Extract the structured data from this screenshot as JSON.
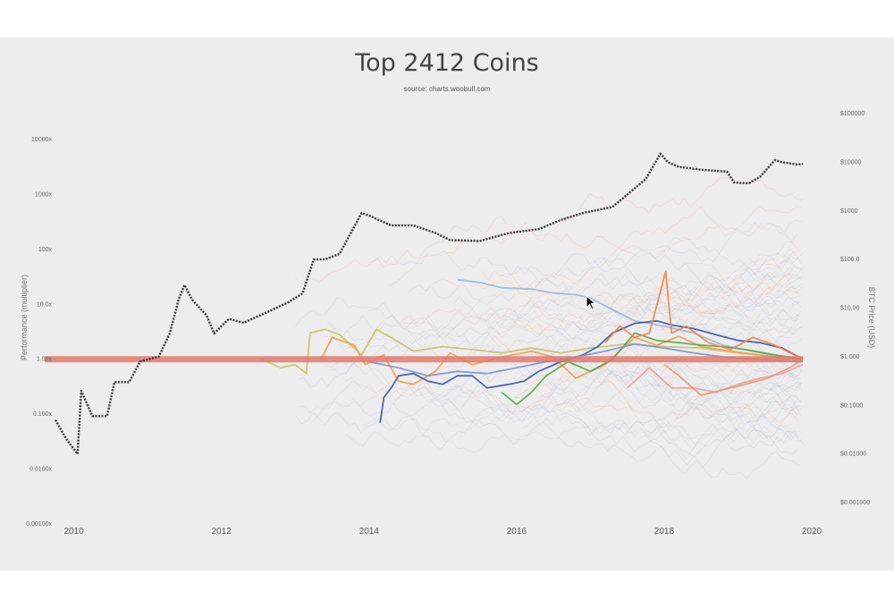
{
  "colors": {
    "background": "#eeedee",
    "btc": "#333333",
    "baseline": "#e07a6e",
    "faint": "#8a9bbd",
    "orange_cloud": "#f0844c"
  },
  "chart_data": {
    "type": "line",
    "title": "Top 2412 Coins",
    "subtitle": "source: charts.woobull.com",
    "ylabel": "Performance (multiplier)",
    "y2label": "BTC Price (USD)",
    "xlabel": "",
    "xlim": [
      2009.75,
      2020.0
    ],
    "ylim": [
      0.001,
      10000
    ],
    "y2lim": [
      0.001,
      100000
    ],
    "yscale": "log",
    "x_ticks": [
      "2010",
      "2012",
      "2014",
      "2016",
      "2018",
      "2020"
    ],
    "y_ticks": [
      "10000x",
      "1000x",
      "100x",
      "10.0x",
      "1.00x",
      "0.100x",
      "0.0100x",
      "0.00100x"
    ],
    "y2_ticks": [
      "$100000",
      "$10000",
      "$1000",
      "$100.0",
      "$10.00",
      "$1.000",
      "$0.1000",
      "$0.01000",
      "$0.001000"
    ],
    "baseline_value": 1.0,
    "legend": "none",
    "grid": false,
    "series": [
      {
        "color": "#333333",
        "axis": "right",
        "points": [
          [
            2009.75,
            0.05
          ],
          [
            2009.9,
            0.02
          ],
          [
            2010.05,
            0.01
          ],
          [
            2010.1,
            0.2
          ],
          [
            2010.25,
            0.06
          ],
          [
            2010.45,
            0.06
          ],
          [
            2010.55,
            0.3
          ],
          [
            2010.75,
            0.3
          ],
          [
            2010.9,
            0.8
          ],
          [
            2011.15,
            1.0
          ],
          [
            2011.3,
            3.0
          ],
          [
            2011.42,
            15
          ],
          [
            2011.5,
            30
          ],
          [
            2011.6,
            15
          ],
          [
            2011.8,
            7
          ],
          [
            2011.9,
            3
          ],
          [
            2012.1,
            6
          ],
          [
            2012.3,
            5
          ],
          [
            2012.6,
            8
          ],
          [
            2012.9,
            13
          ],
          [
            2013.1,
            20
          ],
          [
            2013.25,
            100
          ],
          [
            2013.4,
            100
          ],
          [
            2013.6,
            130
          ],
          [
            2013.9,
            900
          ],
          [
            2014.0,
            800
          ],
          [
            2014.3,
            500
          ],
          [
            2014.6,
            500
          ],
          [
            2014.9,
            350
          ],
          [
            2015.1,
            250
          ],
          [
            2015.5,
            240
          ],
          [
            2015.9,
            350
          ],
          [
            2016.3,
            420
          ],
          [
            2016.6,
            650
          ],
          [
            2016.9,
            900
          ],
          [
            2017.3,
            1200
          ],
          [
            2017.55,
            2500
          ],
          [
            2017.75,
            4500
          ],
          [
            2017.95,
            15000
          ],
          [
            2018.05,
            10000
          ],
          [
            2018.2,
            8000
          ],
          [
            2018.5,
            7000
          ],
          [
            2018.85,
            6400
          ],
          [
            2018.95,
            3800
          ],
          [
            2019.15,
            3700
          ],
          [
            2019.3,
            5000
          ],
          [
            2019.5,
            11000
          ],
          [
            2019.6,
            10000
          ],
          [
            2019.8,
            9000
          ],
          [
            2019.88,
            9200
          ]
        ]
      },
      {
        "color": "#9db8cf",
        "axis": "left",
        "points": [
          [
            2015.2,
            28
          ],
          [
            2015.5,
            25
          ],
          [
            2015.8,
            20
          ],
          [
            2016.2,
            19
          ],
          [
            2016.5,
            16
          ],
          [
            2016.8,
            15
          ],
          [
            2017.0,
            13
          ],
          [
            2017.3,
            8
          ],
          [
            2017.6,
            5
          ],
          [
            2018.0,
            4
          ],
          [
            2018.4,
            3
          ],
          [
            2018.8,
            1.8
          ],
          [
            2019.2,
            1.4
          ],
          [
            2019.6,
            1.1
          ],
          [
            2019.88,
            1.0
          ]
        ]
      },
      {
        "color": "#c5c46a",
        "axis": "left",
        "points": [
          [
            2012.55,
            1.0
          ],
          [
            2012.8,
            0.7
          ],
          [
            2013.0,
            0.8
          ],
          [
            2013.15,
            0.55
          ],
          [
            2013.2,
            3
          ],
          [
            2013.4,
            3.5
          ],
          [
            2013.6,
            2.8
          ],
          [
            2013.9,
            1.2
          ],
          [
            2014.1,
            3.5
          ],
          [
            2014.3,
            2.5
          ],
          [
            2014.6,
            1.4
          ],
          [
            2015.0,
            1.7
          ],
          [
            2015.4,
            1.5
          ],
          [
            2015.8,
            1.3
          ],
          [
            2016.2,
            1.6
          ],
          [
            2016.6,
            1.3
          ],
          [
            2017.0,
            1.6
          ],
          [
            2017.5,
            1.9
          ],
          [
            2018.0,
            1.7
          ],
          [
            2018.5,
            1.6
          ],
          [
            2019.0,
            1.3
          ],
          [
            2019.5,
            1.1
          ],
          [
            2019.88,
            1.0
          ]
        ]
      },
      {
        "color": "#f0a04b",
        "axis": "left",
        "points": [
          [
            2013.35,
            1.0
          ],
          [
            2013.5,
            2.5
          ],
          [
            2013.8,
            1.8
          ],
          [
            2013.95,
            0.8
          ],
          [
            2014.2,
            1.2
          ],
          [
            2014.4,
            0.4
          ],
          [
            2014.6,
            0.35
          ],
          [
            2014.9,
            0.6
          ],
          [
            2015.1,
            1.3
          ],
          [
            2015.4,
            0.8
          ],
          [
            2015.8,
            1.1
          ],
          [
            2016.2,
            1.4
          ],
          [
            2016.5,
            1.1
          ],
          [
            2016.8,
            0.45
          ],
          [
            2017.2,
            0.8
          ],
          [
            2017.6,
            2.5
          ],
          [
            2017.9,
            1.8
          ],
          [
            2018.2,
            2.6
          ],
          [
            2018.5,
            1.7
          ],
          [
            2018.9,
            1.4
          ],
          [
            2019.3,
            1.2
          ],
          [
            2019.6,
            1.05
          ],
          [
            2019.88,
            1.0
          ]
        ]
      },
      {
        "color": "#3a5aa8",
        "axis": "left",
        "points": [
          [
            2014.15,
            0.07
          ],
          [
            2014.2,
            0.2
          ],
          [
            2014.3,
            0.3
          ],
          [
            2014.4,
            0.5
          ],
          [
            2014.6,
            0.55
          ],
          [
            2014.8,
            0.4
          ],
          [
            2015.0,
            0.35
          ],
          [
            2015.2,
            0.5
          ],
          [
            2015.4,
            0.5
          ],
          [
            2015.6,
            0.3
          ],
          [
            2015.9,
            0.35
          ],
          [
            2016.1,
            0.4
          ],
          [
            2016.3,
            0.6
          ],
          [
            2016.6,
            0.9
          ],
          [
            2016.9,
            1.2
          ],
          [
            2017.1,
            1.7
          ],
          [
            2017.3,
            3.0
          ],
          [
            2017.6,
            4.5
          ],
          [
            2017.9,
            5.0
          ],
          [
            2018.1,
            4.2
          ],
          [
            2018.4,
            3.6
          ],
          [
            2018.7,
            2.8
          ],
          [
            2019.0,
            2.2
          ],
          [
            2019.3,
            2.0
          ],
          [
            2019.6,
            1.6
          ],
          [
            2019.88,
            1.0
          ]
        ]
      },
      {
        "color": "#5aa64b",
        "axis": "left",
        "points": [
          [
            2015.8,
            0.25
          ],
          [
            2016.0,
            0.15
          ],
          [
            2016.2,
            0.25
          ],
          [
            2016.4,
            0.5
          ],
          [
            2016.7,
            0.9
          ],
          [
            2017.0,
            0.6
          ],
          [
            2017.3,
            1.0
          ],
          [
            2017.6,
            3.0
          ],
          [
            2017.9,
            2.2
          ],
          [
            2018.2,
            2.0
          ],
          [
            2018.5,
            1.8
          ],
          [
            2018.8,
            1.7
          ],
          [
            2019.1,
            1.5
          ],
          [
            2019.5,
            1.2
          ],
          [
            2019.88,
            1.0
          ]
        ]
      },
      {
        "color": "#f0844c",
        "axis": "left",
        "points": [
          [
            2017.2,
            2.0
          ],
          [
            2017.4,
            4.0
          ],
          [
            2017.6,
            2.5
          ],
          [
            2017.8,
            3.0
          ],
          [
            2017.92,
            12
          ],
          [
            2018.02,
            40
          ],
          [
            2018.1,
            3.0
          ],
          [
            2018.3,
            4.0
          ],
          [
            2018.6,
            2.0
          ],
          [
            2018.9,
            1.5
          ],
          [
            2019.2,
            2.5
          ],
          [
            2019.5,
            1.8
          ],
          [
            2019.88,
            1.0
          ]
        ]
      },
      {
        "color": "#e8a1a1",
        "axis": "left",
        "points": [
          [
            2017.5,
            0.3
          ],
          [
            2017.8,
            0.7
          ],
          [
            2018.1,
            0.3
          ],
          [
            2018.4,
            0.3
          ],
          [
            2018.7,
            0.25
          ],
          [
            2019.0,
            0.35
          ],
          [
            2019.3,
            0.45
          ],
          [
            2019.6,
            0.55
          ],
          [
            2019.88,
            0.8
          ]
        ]
      },
      {
        "color": "#e89b77",
        "axis": "left",
        "points": [
          [
            2018.0,
            0.8
          ],
          [
            2018.2,
            0.5
          ],
          [
            2018.5,
            0.22
          ],
          [
            2018.8,
            0.28
          ],
          [
            2019.1,
            0.35
          ],
          [
            2019.4,
            0.45
          ],
          [
            2019.7,
            0.7
          ],
          [
            2019.88,
            1.0
          ]
        ]
      },
      {
        "color": "#7c96c9",
        "axis": "left",
        "points": [
          [
            2014.0,
            0.9
          ],
          [
            2014.4,
            0.7
          ],
          [
            2014.8,
            0.5
          ],
          [
            2015.2,
            0.6
          ],
          [
            2015.6,
            0.55
          ],
          [
            2016.0,
            0.7
          ],
          [
            2016.4,
            0.9
          ],
          [
            2016.8,
            1.1
          ],
          [
            2017.2,
            1.4
          ],
          [
            2017.6,
            1.9
          ],
          [
            2018.0,
            1.6
          ],
          [
            2018.4,
            1.3
          ],
          [
            2018.8,
            1.1
          ],
          [
            2019.2,
            1.0
          ],
          [
            2019.88,
            0.9
          ]
        ]
      }
    ]
  }
}
